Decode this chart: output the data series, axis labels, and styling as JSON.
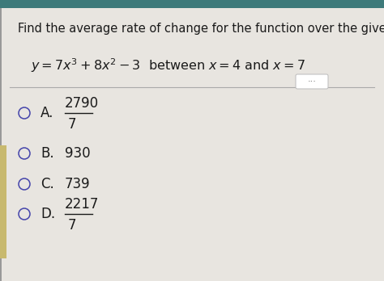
{
  "title_line1": "Find the average rate of change for the function over the given interval.",
  "options": [
    {
      "letter": "A.",
      "numerator": "2790",
      "denominator": "7",
      "has_fraction": true
    },
    {
      "letter": "B.",
      "value": "930",
      "has_fraction": false
    },
    {
      "letter": "C.",
      "value": "739",
      "has_fraction": false
    },
    {
      "letter": "D.",
      "numerator": "2217",
      "denominator": "7",
      "has_fraction": true
    }
  ],
  "bg_color": "#e8e5e0",
  "main_bg": "#f2f0ed",
  "left_stripe_color": "#c8b96e",
  "teal_bar_color": "#3d7a7a",
  "text_color": "#1a1a1a",
  "separator_color": "#aaaaaa",
  "circle_color": "#4444aa",
  "dots_color": "#666666",
  "title_fontsize": 10.5,
  "eq_fontsize": 11.5,
  "option_fontsize": 12
}
